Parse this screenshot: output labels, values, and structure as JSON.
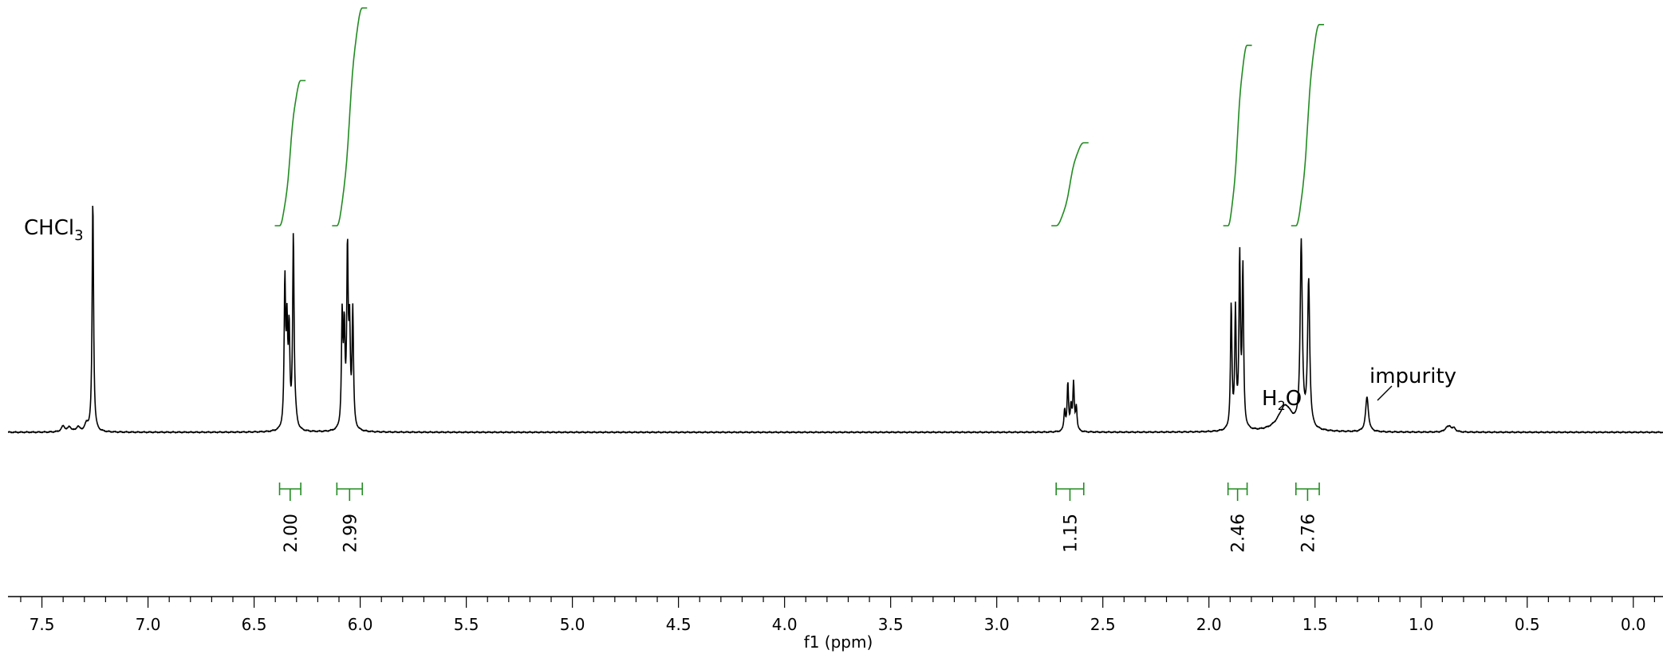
{
  "chart_data": {
    "type": "line",
    "xlabel": "f1 (ppm)",
    "xlim": [
      7.66,
      -0.14
    ],
    "x_reversed": true,
    "ticks": [
      7.5,
      7.0,
      6.5,
      6.0,
      5.5,
      5.0,
      4.5,
      4.0,
      3.5,
      3.0,
      2.5,
      2.0,
      1.5,
      1.0,
      0.5,
      0.0
    ],
    "tick_labels": [
      "7.5",
      "7.0",
      "6.5",
      "6.0",
      "5.5",
      "5.0",
      "4.5",
      "4.0",
      "3.5",
      "3.0",
      "2.5",
      "2.0",
      "1.5",
      "1.0",
      "0.5",
      "0.0"
    ],
    "spectrum_color": "#000000",
    "integral_color": "#228b22",
    "peaks": [
      {
        "ppm": 7.26,
        "height": 1.0,
        "width": 0.004
      },
      {
        "ppm": 7.4,
        "height": 0.025,
        "width": 0.01
      },
      {
        "ppm": 7.37,
        "height": 0.02,
        "width": 0.01
      },
      {
        "ppm": 7.33,
        "height": 0.02,
        "width": 0.01
      },
      {
        "ppm": 7.29,
        "height": 0.03,
        "width": 0.01
      },
      {
        "ppm": 6.355,
        "height": 0.62,
        "width": 0.004
      },
      {
        "ppm": 6.345,
        "height": 0.4,
        "width": 0.004
      },
      {
        "ppm": 6.335,
        "height": 0.4,
        "width": 0.004
      },
      {
        "ppm": 6.315,
        "height": 0.82,
        "width": 0.004
      },
      {
        "ppm": 6.305,
        "height": 0.04,
        "width": 0.008
      },
      {
        "ppm": 6.085,
        "height": 0.47,
        "width": 0.004
      },
      {
        "ppm": 6.075,
        "height": 0.4,
        "width": 0.004
      },
      {
        "ppm": 6.06,
        "height": 0.75,
        "width": 0.004
      },
      {
        "ppm": 6.05,
        "height": 0.4,
        "width": 0.004
      },
      {
        "ppm": 6.035,
        "height": 0.5,
        "width": 0.004
      },
      {
        "ppm": 2.68,
        "height": 0.09,
        "width": 0.004
      },
      {
        "ppm": 2.665,
        "height": 0.2,
        "width": 0.004
      },
      {
        "ppm": 2.65,
        "height": 0.1,
        "width": 0.004
      },
      {
        "ppm": 2.638,
        "height": 0.2,
        "width": 0.004
      },
      {
        "ppm": 2.625,
        "height": 0.1,
        "width": 0.004
      },
      {
        "ppm": 1.895,
        "height": 0.53,
        "width": 0.004
      },
      {
        "ppm": 1.875,
        "height": 0.5,
        "width": 0.004
      },
      {
        "ppm": 1.855,
        "height": 0.73,
        "width": 0.004
      },
      {
        "ppm": 1.84,
        "height": 0.68,
        "width": 0.004
      },
      {
        "ppm": 1.64,
        "height": 0.11,
        "width": 0.04
      },
      {
        "ppm": 1.565,
        "height": 0.79,
        "width": 0.006
      },
      {
        "ppm": 1.53,
        "height": 0.63,
        "width": 0.006
      },
      {
        "ppm": 1.255,
        "height": 0.15,
        "width": 0.008
      },
      {
        "ppm": 0.88,
        "height": 0.015,
        "width": 0.01
      },
      {
        "ppm": 0.865,
        "height": 0.02,
        "width": 0.01
      },
      {
        "ppm": 0.845,
        "height": 0.015,
        "width": 0.01
      }
    ],
    "integrals": [
      {
        "from": 6.38,
        "to": 6.28,
        "value": "2.00",
        "rise": 0.7
      },
      {
        "from": 6.11,
        "to": 5.99,
        "value": "2.99",
        "rise": 1.05
      },
      {
        "from": 2.72,
        "to": 2.59,
        "value": "1.15",
        "rise": 0.4
      },
      {
        "from": 1.91,
        "to": 1.82,
        "value": "2.46",
        "rise": 0.87
      },
      {
        "from": 1.59,
        "to": 1.48,
        "value": "2.76",
        "rise": 0.97
      }
    ],
    "annotations": [
      {
        "text": "CHCl",
        "subscript": "3",
        "ppm": 7.26
      },
      {
        "text": "H",
        "subscript": "2",
        "suffix": "O",
        "ppm": 1.64
      },
      {
        "text": "impurity",
        "ppm": 1.255
      }
    ]
  }
}
